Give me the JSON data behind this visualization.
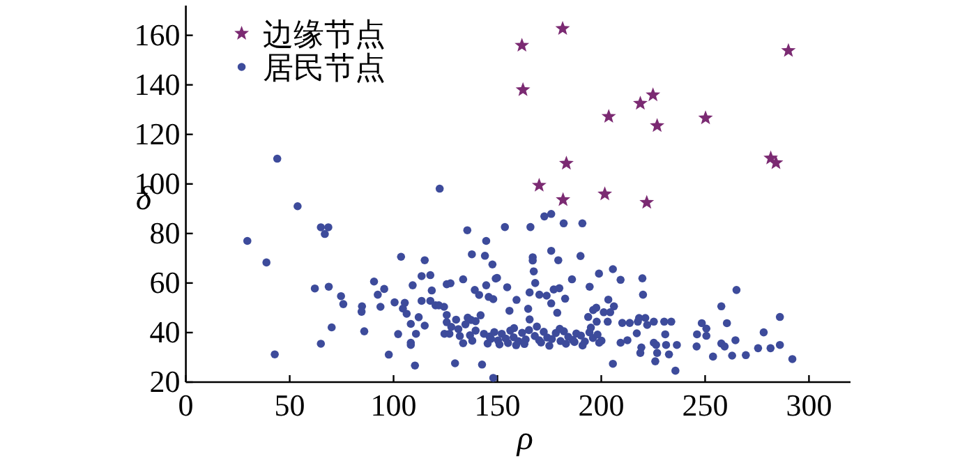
{
  "chart_data": {
    "type": "scatter",
    "xlabel": "ρ",
    "ylabel": "δ",
    "xlim": [
      0,
      320
    ],
    "ylim": [
      20,
      172
    ],
    "xticks": [
      0,
      50,
      100,
      150,
      200,
      250,
      300
    ],
    "yticks": [
      20,
      40,
      60,
      80,
      100,
      120,
      140,
      160
    ],
    "legend": "top left",
    "grid": false,
    "series": [
      {
        "name": "边缘节点",
        "color": "#7b2a72",
        "marker": "star",
        "x": [
          181.4,
          161.8,
          290.1,
          162.3,
          224.9,
          218.8,
          203.6,
          250.2,
          226.9,
          183.2,
          281.6,
          284.1,
          170.1,
          181.6,
          201.7,
          221.9
        ],
        "values": [
          162.7,
          155.9,
          153.8,
          138.0,
          135.9,
          132.5,
          127.2,
          126.6,
          123.5,
          108.3,
          110.4,
          108.5,
          99.4,
          93.6,
          95.9,
          92.5
        ]
      },
      {
        "name": "居民节点",
        "color": "#3d4b9b",
        "marker": "circle",
        "x": [
          29.6,
          38.8,
          42.8,
          44.0,
          53.8,
          65.0,
          68.6,
          66.9,
          62.1,
          68.8,
          65.0,
          70.2,
          74.7,
          75.8,
          84.8,
          84.6,
          85.9,
          90.6,
          92.4,
          93.7,
          95.5,
          97.7,
          100.5,
          102.2,
          103.6,
          104.5,
          105.4,
          106.3,
          108.3,
          108.3,
          108.3,
          109.2,
          110.3,
          110.8,
          112.1,
          113.5,
          113.5,
          115.0,
          115.0,
          117.7,
          117.7,
          118.4,
          120.2,
          121.8,
          122.2,
          124.3,
          125.6,
          127.4,
          124.5,
          125.6,
          125.6,
          126.9,
          127.8,
          129.6,
          130.1,
          131.2,
          131.9,
          133.5,
          133.5,
          134.6,
          135.7,
          135.5,
          136.8,
          137.3,
          137.7,
          137.9,
          139.1,
          139.5,
          139.5,
          141.2,
          141.9,
          142.6,
          143.5,
          144.0,
          144.6,
          144.6,
          145.8,
          145.3,
          146.9,
          147.6,
          148.0,
          149.2,
          148.0,
          153.6,
          149.8,
          154.7,
          155.8,
          159.2,
          165.9,
          167.0,
          167.0,
          167.5,
          168.2,
          165.5,
          164.8,
          165.5,
          170.2,
          172.6,
          175.9,
          175.9,
          179.3,
          177.1,
          179.8,
          173.7,
          175.9,
          178.8,
          182.6,
          181.9,
          185.9,
          190.0,
          190.9,
          194.4,
          193.7,
          196.1,
          197.6,
          197.8,
          198.9,
          201.2,
          203.4,
          204.3,
          205.6,
          206.1,
          203.1,
          205.6,
          209.3,
          210.1,
          209.3,
          213.7,
          212.6,
          217.1,
          217.6,
          218.2,
          219.8,
          220.1,
          221.2,
          222.1,
          219.3,
          218.8,
          225.3,
          225.3,
          226.0,
          226.4,
          226.9,
          230.3,
          230.8,
          231.2,
          232.6,
          233.7,
          236.4,
          235.7,
          245.9,
          246.1,
          248.4,
          250.6,
          250.6,
          253.8,
          257.8,
          257.8,
          259.4,
          260.5,
          263.0,
          264.6,
          265.1,
          269.6,
          275.5,
          278.2,
          281.5,
          286.0,
          286.0,
          292.0,
          146.2,
          148.5,
          150.3,
          152.1,
          154.0,
          156.2,
          157.8,
          160.1,
          161.9,
          163.6,
          165.2,
          168.0,
          170.1,
          172.3,
          174.0,
          176.2,
          178.1,
          180.4,
          182.0,
          184.1,
          186.3,
          188.0,
          190.2,
          192.1,
          194.3,
          196.0,
          198.2,
          200.1,
          151.0,
          155.1,
          159.0,
          163.0,
          171.0,
          175.0,
          183.0,
          187.1,
          191.0,
          199.0,
          158.0,
          169.0,
          180.0,
          195.0
        ],
        "values": [
          77.0,
          68.3,
          31.2,
          110.2,
          91.0,
          82.5,
          82.5,
          79.8,
          57.8,
          58.5,
          35.5,
          42.1,
          54.7,
          51.5,
          50.6,
          48.4,
          40.5,
          60.6,
          55.3,
          50.4,
          57.6,
          31.1,
          52.2,
          39.4,
          70.6,
          49.7,
          52.0,
          47.6,
          43.5,
          35.9,
          35.0,
          59.1,
          26.7,
          39.5,
          46.2,
          52.8,
          62.8,
          69.2,
          42.8,
          63.2,
          52.8,
          57.0,
          51.0,
          51.0,
          98.1,
          50.4,
          59.5,
          59.9,
          39.5,
          47.1,
          44.2,
          39.5,
          42.3,
          27.6,
          45.2,
          41.4,
          38.6,
          61.5,
          35.7,
          43.3,
          46.0,
          81.3,
          38.9,
          45.1,
          71.6,
          36.7,
          57.2,
          40.8,
          44.6,
          55.2,
          47.0,
          27.1,
          39.5,
          71.0,
          77.0,
          59.1,
          54.4,
          35.6,
          37.5,
          67.5,
          21.7,
          61.8,
          53.5,
          82.6,
          62.1,
          58.3,
          48.8,
          53.2,
          82.6,
          70.4,
          69.1,
          64.7,
          60.0,
          56.2,
          49.6,
          45.3,
          55.3,
          86.9,
          87.9,
          73.0,
          69.2,
          57.4,
          57.9,
          54.9,
          51.8,
          48.0,
          53.7,
          84.1,
          61.5,
          70.9,
          84.1,
          58.5,
          46.3,
          49.1,
          50.0,
          44.4,
          63.8,
          48.2,
          53.3,
          48.2,
          65.6,
          50.6,
          44.4,
          27.4,
          61.3,
          43.9,
          35.9,
          43.9,
          36.9,
          39.7,
          44.4,
          45.9,
          61.9,
          55.3,
          45.9,
          43.1,
          34.0,
          31.8,
          44.4,
          35.9,
          28.4,
          35.0,
          31.8,
          44.4,
          39.3,
          35.0,
          31.2,
          44.4,
          35.0,
          24.6,
          34.4,
          39.3,
          43.8,
          41.6,
          38.7,
          30.3,
          50.6,
          35.6,
          34.4,
          43.8,
          30.7,
          36.9,
          57.2,
          30.9,
          33.7,
          40.1,
          33.7,
          35.0,
          46.3,
          29.3,
          38.4,
          40.2,
          36.8,
          39.5,
          37.6,
          40.8,
          38.1,
          36.5,
          39.9,
          37.2,
          41.0,
          38.6,
          36.9,
          40.3,
          38.0,
          37.4,
          39.8,
          36.6,
          40.5,
          38.3,
          37.0,
          39.6,
          38.8,
          36.4,
          40.1,
          37.8,
          39.2,
          36.7,
          35.2,
          35.8,
          34.9,
          35.4,
          36.0,
          34.7,
          35.5,
          36.2,
          34.8,
          35.9,
          41.8,
          42.4,
          41.5,
          42.0
        ]
      }
    ]
  }
}
